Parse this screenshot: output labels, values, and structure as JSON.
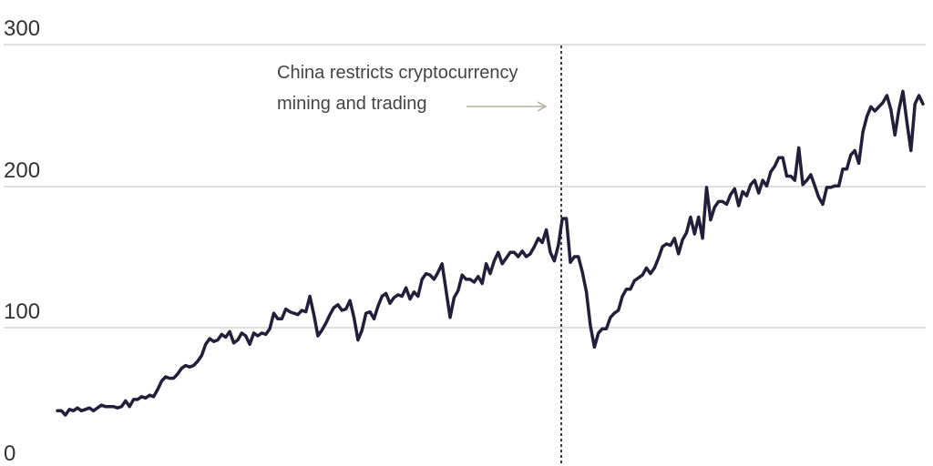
{
  "chart_data": {
    "type": "line",
    "title": "",
    "xlabel": "",
    "ylabel": "",
    "ylim": [
      0,
      300
    ],
    "yticks": [
      "0",
      "100",
      "200",
      "300"
    ],
    "grid": true,
    "legend": null,
    "line_color": "#231f3a",
    "annotation": {
      "line1": "China restricts cryptocurrency",
      "line2": "mining and trading",
      "marker_x_index": 158
    },
    "values": [
      41,
      41,
      38,
      42,
      41,
      43,
      41,
      42,
      43,
      41,
      43,
      45,
      44,
      44,
      44,
      43,
      44,
      48,
      44,
      49,
      49,
      51,
      50,
      52,
      51,
      56,
      62,
      65,
      64,
      64,
      67,
      71,
      73,
      72,
      73,
      76,
      80,
      88,
      92,
      90,
      91,
      95,
      93,
      97,
      89,
      91,
      96,
      94,
      88,
      96,
      94,
      96,
      95,
      99,
      110,
      106,
      106,
      113,
      111,
      110,
      109,
      112,
      111,
      122,
      109,
      94,
      98,
      103,
      109,
      114,
      116,
      112,
      113,
      119,
      107,
      91,
      98,
      110,
      111,
      106,
      115,
      122,
      124,
      117,
      121,
      123,
      122,
      128,
      120,
      125,
      122,
      134,
      138,
      137,
      134,
      139,
      145,
      126,
      107,
      121,
      126,
      137,
      134,
      134,
      132,
      136,
      131,
      145,
      138,
      147,
      153,
      145,
      149,
      153,
      153,
      150,
      154,
      150,
      152,
      157,
      163,
      160,
      169,
      153,
      147,
      158,
      177,
      177,
      146,
      150,
      150,
      139,
      125,
      101,
      86,
      96,
      99,
      99,
      107,
      110,
      112,
      122,
      127,
      127,
      133,
      135,
      137,
      142,
      138,
      142,
      149,
      157,
      159,
      158,
      163,
      152,
      162,
      167,
      178,
      166,
      178,
      163,
      199,
      176,
      185,
      189,
      189,
      187,
      194,
      198,
      186,
      196,
      193,
      201,
      204,
      195,
      204,
      200,
      210,
      214,
      220,
      220,
      207,
      207,
      204,
      227,
      201,
      204,
      208,
      200,
      192,
      187,
      199,
      199,
      200,
      200,
      212,
      212,
      222,
      225,
      216,
      238,
      249,
      256,
      253,
      256,
      259,
      264,
      254,
      236,
      254,
      267,
      245,
      225,
      258,
      264,
      258
    ]
  },
  "axis": {
    "tick_300": "300",
    "tick_200": "200",
    "tick_100": "100",
    "tick_0": "0"
  }
}
